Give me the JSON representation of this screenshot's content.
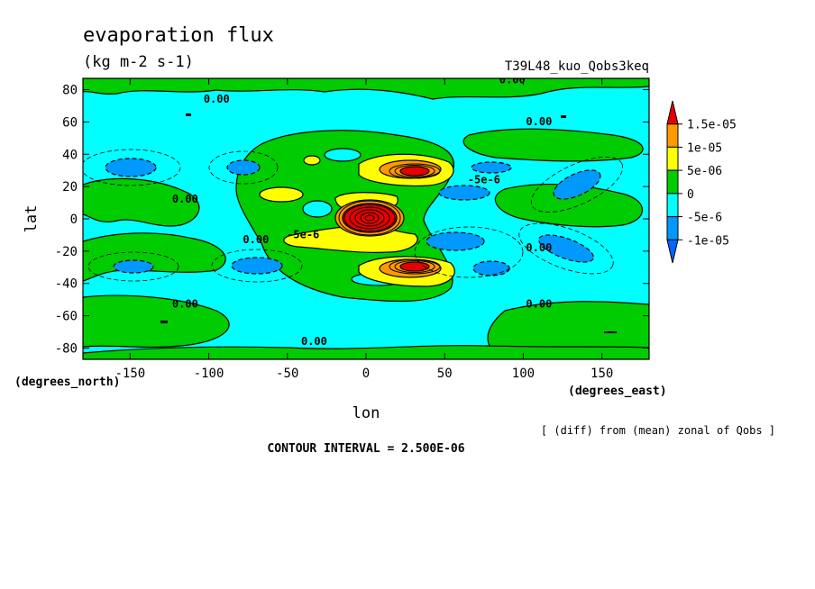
{
  "chart_data": {
    "type": "heatmap",
    "title": "evaporation flux",
    "units": "(kg m-2 s-1)",
    "run_label": "T39L48_kuo_Qobs3keq",
    "xlabel": "lon",
    "ylabel": "lat",
    "x_unit_label": "(degrees_east)",
    "y_unit_label": "(degrees_north)",
    "xlim": [
      -180,
      180
    ],
    "ylim": [
      -87,
      87
    ],
    "x_ticks": [
      -150,
      -100,
      -50,
      0,
      50,
      100,
      150
    ],
    "y_ticks": [
      80,
      60,
      40,
      20,
      0,
      -20,
      -40,
      -60,
      -80
    ],
    "x_tick_labels": [
      "-150",
      "-100",
      "-50",
      "0",
      "50",
      "100",
      "150"
    ],
    "y_tick_labels": [
      "80",
      "60",
      "40",
      "20",
      "0",
      "-20",
      "-40",
      "-60",
      "-80"
    ],
    "diff_note": "[ (diff) from (mean) zonal of Qobs ]",
    "contour_interval_text": "CONTOUR INTERVAL = 2.500E-06",
    "legend": {
      "placement": "right",
      "labels": [
        "1.5e-05",
        "1e-05",
        "5e-06",
        "0",
        "-5e-6",
        "-1e-05"
      ],
      "bands": [
        {
          "min": 1.5e-05,
          "color": "#e60000"
        },
        {
          "min": 1e-05,
          "max": 1.5e-05,
          "color": "#ff9900"
        },
        {
          "min": 5e-06,
          "max": 1e-05,
          "color": "#ffff00"
        },
        {
          "min": 0,
          "max": 5e-06,
          "color": "#00cc00"
        },
        {
          "min": -5e-06,
          "max": 0,
          "color": "#00ffff"
        },
        {
          "min": -1e-05,
          "max": -5e-06,
          "color": "#0099ff"
        },
        {
          "max": -1e-05,
          "color": "#0066ff"
        }
      ]
    },
    "contour_labels": [
      {
        "text": "0.00",
        "lon": -95,
        "lat": 72
      },
      {
        "text": "0.00",
        "lon": 93,
        "lat": 84
      },
      {
        "text": "0.00",
        "lon": 110,
        "lat": 58
      },
      {
        "text": "0.00",
        "lon": -115,
        "lat": 10
      },
      {
        "text": "0.00",
        "lon": -70,
        "lat": -15
      },
      {
        "text": "-5e-6",
        "lon": -40,
        "lat": -12
      },
      {
        "text": "-5e-6",
        "lon": 75,
        "lat": 22
      },
      {
        "text": "0.00",
        "lon": 110,
        "lat": -20
      },
      {
        "text": "0.00",
        "lon": -115,
        "lat": -55
      },
      {
        "text": "0.00",
        "lon": 110,
        "lat": -55
      },
      {
        "text": "0.00",
        "lon": -33,
        "lat": -78
      }
    ],
    "features": [
      {
        "name": "equatorial maximum",
        "lon": 0,
        "lat": 0,
        "value": 1.5e-05
      },
      {
        "name": "northern subtropical maximum",
        "lon": 30,
        "lat": 28,
        "value": 1.5e-05
      },
      {
        "name": "southern subtropical maximum",
        "lon": 30,
        "lat": -30,
        "value": 1.5e-05
      }
    ]
  }
}
